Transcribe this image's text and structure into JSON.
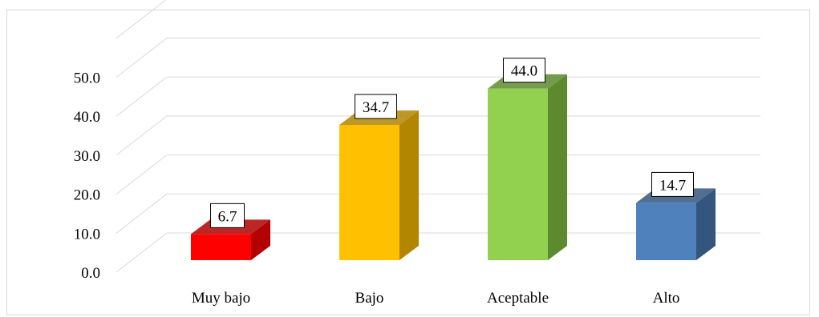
{
  "chart_data": {
    "type": "bar",
    "categories": [
      "Muy bajo",
      "Bajo",
      "Aceptable",
      "Alto"
    ],
    "values": [
      6.7,
      34.7,
      44.0,
      14.7
    ],
    "value_labels": [
      "6.7",
      "34.7",
      "44.0",
      "14.7"
    ],
    "colors": [
      "#ff0000",
      "#ffc000",
      "#92d050",
      "#4f81bd"
    ],
    "side_colors": [
      "#b30000",
      "#b38600",
      "#5d8a2f",
      "#34567e"
    ],
    "yticks": [
      0,
      10,
      20,
      30,
      40,
      50
    ],
    "ytick_labels": [
      "0.0",
      "10.0",
      "20.0",
      "30.0",
      "40.0",
      "50.0"
    ],
    "ylim": [
      0,
      60
    ],
    "grid": true,
    "legend": "none",
    "title": "",
    "xlabel": "",
    "ylabel": ""
  }
}
